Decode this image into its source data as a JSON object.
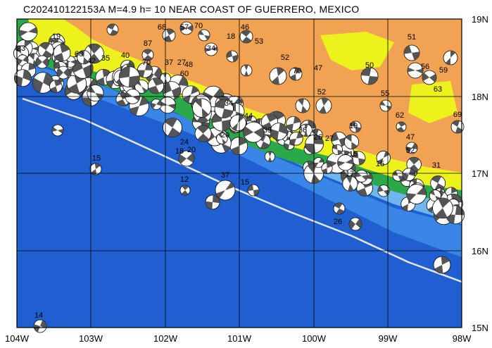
{
  "title": "C202410122153A  M=4.9  h= 10  NEAR COAST OF GUERRERO, MEXICO",
  "lon_labels": [
    "104W",
    "103W",
    "102W",
    "101W",
    "100W",
    "99W",
    "98W"
  ],
  "lat_labels": [
    "19N",
    "18N",
    "17N",
    "16N",
    "15N"
  ],
  "extent": {
    "lon": [
      -104,
      -98
    ],
    "lat": [
      15,
      19
    ]
  },
  "colors": {
    "deep_ocean": "#1f5fd0",
    "mid_ocean": "#3a86e6",
    "shelf": "#6fb6f0",
    "coastal_shelf": "#a7d8f6",
    "lowland": "#2aa84a",
    "upland": "#eef21c",
    "highland": "#f2a253",
    "trench_line": "#e6e6e6",
    "grid": "#000000",
    "beachball_compression": "#555555",
    "beachball_dilatation": "#ffffff"
  },
  "depth_labels": [
    "19",
    "23",
    "60",
    "42",
    "35",
    "40",
    "70",
    "87",
    "68",
    "57",
    "70",
    "37",
    "27",
    "60",
    "48",
    "34",
    "18",
    "46",
    "53",
    "52",
    "70",
    "47",
    "50",
    "51",
    "56",
    "59",
    "63",
    "52",
    "55",
    "69",
    "62",
    "47",
    "52",
    "31",
    "19",
    "15",
    "24",
    "20",
    "36",
    "27",
    "17",
    "15",
    "12",
    "18",
    "37",
    "15",
    "20",
    "44",
    "39",
    "34",
    "15",
    "14",
    "26",
    "26"
  ]
}
